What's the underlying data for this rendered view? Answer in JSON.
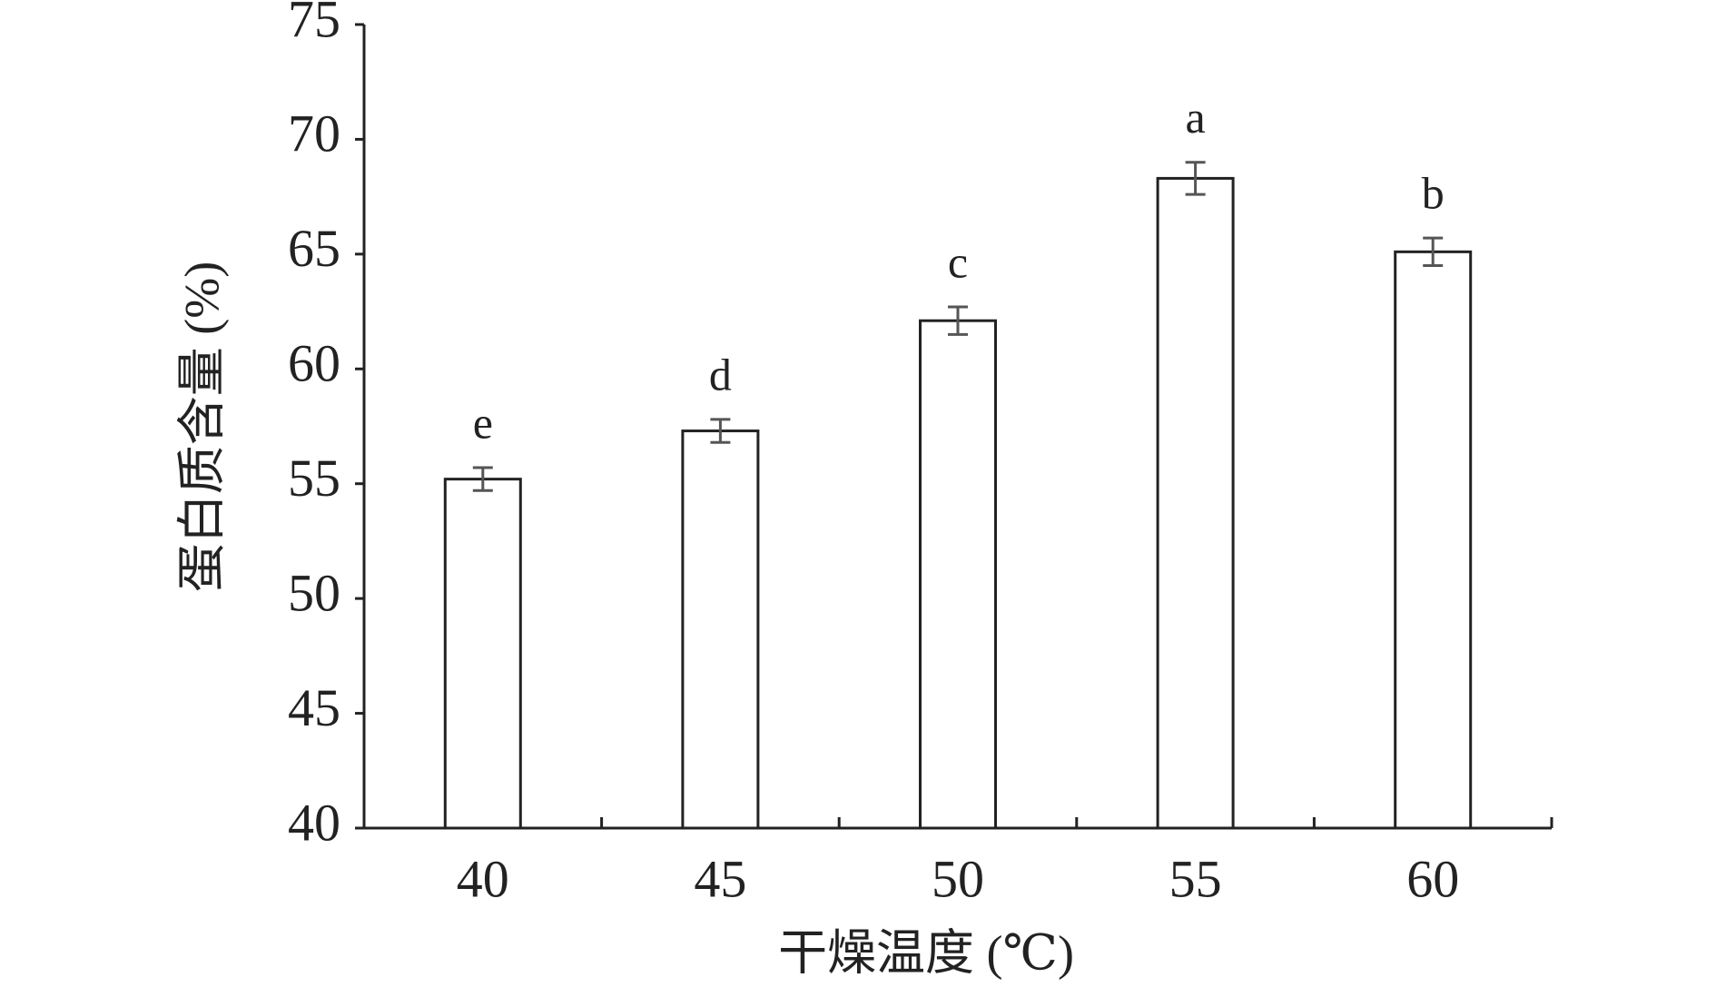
{
  "chart_data": {
    "type": "bar",
    "x_label": "干燥温度 (℃)",
    "y_label": "蛋白质含量 (%)",
    "categories": [
      "40",
      "45",
      "50",
      "55",
      "60"
    ],
    "values": [
      55.2,
      57.3,
      62.1,
      68.3,
      65.1
    ],
    "errors": [
      0.5,
      0.5,
      0.6,
      0.7,
      0.6
    ],
    "labels": [
      "e",
      "d",
      "c",
      "a",
      "b"
    ],
    "color": "#ffffff",
    "edge_color": "#222222",
    "error_color": "#555555",
    "ylim": [
      40,
      75
    ],
    "yticks": [
      40,
      45,
      50,
      55,
      60,
      65,
      70,
      75
    ],
    "grid": false
  }
}
